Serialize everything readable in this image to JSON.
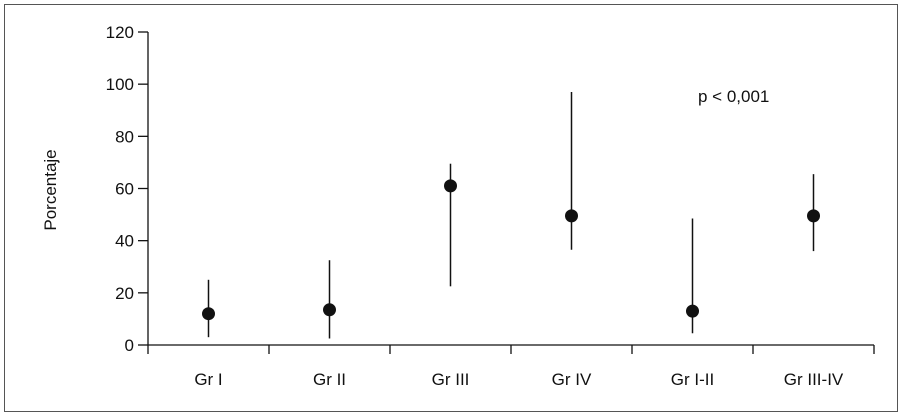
{
  "chart_data": {
    "type": "scatter",
    "ylabel": "Porcentaje",
    "ylim": [
      0,
      120
    ],
    "yticks": [
      0,
      20,
      40,
      60,
      80,
      100,
      120
    ],
    "categories": [
      "Gr I",
      "Gr II",
      "Gr III",
      "Gr IV",
      "Gr I-II",
      "Gr III-IV"
    ],
    "values": [
      12,
      13.5,
      61,
      49.5,
      13,
      49.5
    ],
    "lower": [
      3,
      2.5,
      22.5,
      36.5,
      4.5,
      36
    ],
    "upper": [
      25,
      32.5,
      69.5,
      97,
      48.5,
      65.5
    ],
    "annotation": "p < 0,001",
    "grid": false,
    "marker_color": "#111111"
  }
}
